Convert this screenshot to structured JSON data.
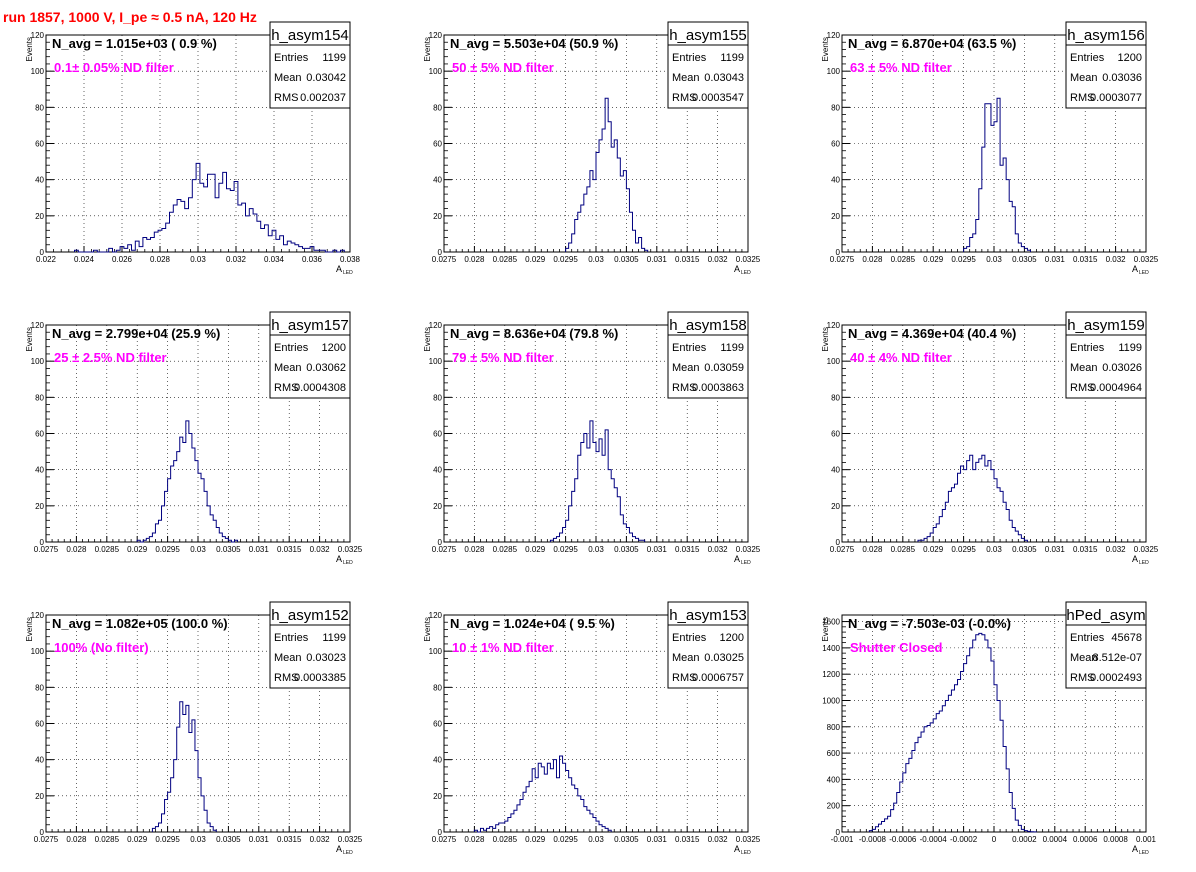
{
  "page_title": "run 1857,  1000 V, I_pe ≈ 0.5 nA, 120 Hz",
  "colors": {
    "histogram_line": "#000080",
    "filter_label": "#ff00ff",
    "page_title": "#ff0000",
    "grid": "#000000"
  },
  "common": {
    "y_axis_label": "Events",
    "x_axis_label_main": "A",
    "x_axis_label_sub": "LED",
    "stats_labels": [
      "Entries",
      "Mean",
      "RMS"
    ]
  },
  "chart_data": [
    {
      "type": "bar",
      "name": "h_asym154",
      "navg": "N_avg = 1.015e+03 ( 0.9 %)",
      "filter": "0.1± 0.05% ND filter",
      "stats": {
        "entries": "1199",
        "mean": "0.03042",
        "rms": "0.002037"
      },
      "xlim": [
        0.022,
        0.038
      ],
      "ylim": [
        0,
        120
      ],
      "xticks": [
        0.022,
        0.024,
        0.026,
        0.028,
        0.03,
        0.032,
        0.034,
        0.036,
        0.038
      ],
      "xtick_labels": [
        "0.022",
        "0.024",
        "0.026",
        "0.028",
        "0.03",
        "0.032",
        "0.034",
        "0.036",
        "0.038"
      ],
      "yticks": [
        0,
        20,
        40,
        60,
        80,
        100,
        120
      ],
      "ytick_labels": [
        "0",
        "20",
        "40",
        "60",
        "80",
        "100",
        "120"
      ],
      "bin_start": 0.0235,
      "bin_width": 0.0002,
      "counts": [
        1,
        0,
        0,
        0,
        0,
        1,
        0,
        0,
        0,
        2,
        0,
        1,
        3,
        2,
        4,
        1,
        6,
        3,
        8,
        7,
        8,
        11,
        12,
        13,
        16,
        22,
        26,
        29,
        28,
        24,
        30,
        40,
        49,
        38,
        36,
        43,
        43,
        30,
        38,
        44,
        35,
        34,
        39,
        26,
        27,
        20,
        24,
        21,
        17,
        13,
        15,
        9,
        12,
        7,
        9,
        4,
        6,
        5,
        4,
        3,
        2,
        2,
        3,
        1,
        1,
        1,
        0,
        0,
        1,
        0,
        1
      ]
    },
    {
      "type": "bar",
      "name": "h_asym155",
      "navg": "N_avg = 5.503e+04 (50.9 %)",
      "filter": "50 ± 5% ND filter",
      "stats": {
        "entries": "1199",
        "mean": "0.03043",
        "rms": "0.0003547"
      },
      "xlim": [
        0.0275,
        0.0325
      ],
      "ylim": [
        0,
        120
      ],
      "xticks": [
        0.0275,
        0.028,
        0.0285,
        0.029,
        0.0295,
        0.03,
        0.0305,
        0.031,
        0.0315,
        0.032,
        0.0325
      ],
      "xtick_labels": [
        "0.0275",
        "0.028",
        "0.0285",
        "0.029",
        "0.0295",
        "0.03",
        "0.0305",
        "0.031",
        "0.0315",
        "0.032",
        "0.0325"
      ],
      "yticks": [
        0,
        20,
        40,
        60,
        80,
        100,
        120
      ],
      "ytick_labels": [
        "0",
        "20",
        "40",
        "60",
        "80",
        "100",
        "120"
      ],
      "bin_start": 0.0295,
      "bin_width": 5e-05,
      "counts": [
        2,
        5,
        10,
        18,
        22,
        26,
        32,
        36,
        45,
        40,
        55,
        62,
        68,
        85,
        72,
        58,
        62,
        52,
        42,
        45,
        35,
        22,
        12,
        5,
        8,
        2,
        1
      ]
    },
    {
      "type": "bar",
      "name": "h_asym156",
      "navg": "N_avg = 6.870e+04 (63.5 %)",
      "filter": "63 ± 5% ND filter",
      "stats": {
        "entries": "1200",
        "mean": "0.03036",
        "rms": "0.0003077"
      },
      "xlim": [
        0.0275,
        0.0325
      ],
      "ylim": [
        0,
        120
      ],
      "xticks": [
        0.0275,
        0.028,
        0.0285,
        0.029,
        0.0295,
        0.03,
        0.0305,
        0.031,
        0.0315,
        0.032,
        0.0325
      ],
      "xtick_labels": [
        "0.0275",
        "0.028",
        "0.0285",
        "0.029",
        "0.0295",
        "0.03",
        "0.0305",
        "0.031",
        "0.0315",
        "0.032",
        "0.0325"
      ],
      "yticks": [
        0,
        20,
        40,
        60,
        80,
        100,
        120
      ],
      "ytick_labels": [
        "0",
        "20",
        "40",
        "60",
        "80",
        "100",
        "120"
      ],
      "bin_start": 0.0295,
      "bin_width": 5e-05,
      "counts": [
        2,
        3,
        8,
        10,
        18,
        35,
        58,
        82,
        82,
        70,
        72,
        85,
        48,
        52,
        40,
        28,
        25,
        10,
        5,
        3,
        2,
        1
      ]
    },
    {
      "type": "bar",
      "name": "h_asym157",
      "navg": "N_avg = 2.799e+04 (25.9 %)",
      "filter": "25 ± 2.5% ND filter",
      "stats": {
        "entries": "1200",
        "mean": "0.03062",
        "rms": "0.0004308"
      },
      "xlim": [
        0.0275,
        0.0325
      ],
      "ylim": [
        0,
        120
      ],
      "xticks": [
        0.0275,
        0.028,
        0.0285,
        0.029,
        0.0295,
        0.03,
        0.0305,
        0.031,
        0.0315,
        0.032,
        0.0325
      ],
      "xtick_labels": [
        "0.0275",
        "0.028",
        "0.0285",
        "0.029",
        "0.0295",
        "0.03",
        "0.0305",
        "0.031",
        "0.0315",
        "0.032",
        "0.0325"
      ],
      "yticks": [
        0,
        20,
        40,
        60,
        80,
        100,
        120
      ],
      "ytick_labels": [
        "0",
        "20",
        "40",
        "60",
        "80",
        "100",
        "120"
      ],
      "bin_start": 0.029,
      "bin_width": 5e-05,
      "counts": [
        1,
        0,
        1,
        2,
        3,
        5,
        10,
        12,
        20,
        28,
        35,
        42,
        45,
        50,
        58,
        55,
        67,
        60,
        52,
        45,
        38,
        35,
        28,
        20,
        15,
        12,
        8,
        5,
        3,
        2,
        1,
        0,
        1
      ]
    },
    {
      "type": "bar",
      "name": "h_asym158",
      "navg": "N_avg = 8.636e+04 (79.8 %)",
      "filter": "79 ± 5% ND filter",
      "stats": {
        "entries": "1199",
        "mean": "0.03059",
        "rms": "0.0003863"
      },
      "xlim": [
        0.0275,
        0.0325
      ],
      "ylim": [
        0,
        120
      ],
      "xticks": [
        0.0275,
        0.028,
        0.0285,
        0.029,
        0.0295,
        0.03,
        0.0305,
        0.031,
        0.0315,
        0.032,
        0.0325
      ],
      "xtick_labels": [
        "0.0275",
        "0.028",
        "0.0285",
        "0.029",
        "0.0295",
        "0.03",
        "0.0305",
        "0.031",
        "0.0315",
        "0.032",
        "0.0325"
      ],
      "yticks": [
        0,
        20,
        40,
        60,
        80,
        100,
        120
      ],
      "ytick_labels": [
        "0",
        "20",
        "40",
        "60",
        "80",
        "100",
        "120"
      ],
      "bin_start": 0.02925,
      "bin_width": 5e-05,
      "counts": [
        1,
        2,
        3,
        5,
        8,
        12,
        20,
        28,
        35,
        48,
        55,
        60,
        52,
        67,
        55,
        50,
        57,
        48,
        62,
        40,
        35,
        30,
        25,
        15,
        10,
        8,
        5,
        3,
        2,
        1,
        1
      ]
    },
    {
      "type": "bar",
      "name": "h_asym159",
      "navg": "N_avg = 4.369e+04 (40.4 %)",
      "filter": "40 ± 4% ND filter",
      "stats": {
        "entries": "1199",
        "mean": "0.03026",
        "rms": "0.0004964"
      },
      "xlim": [
        0.0275,
        0.0325
      ],
      "ylim": [
        0,
        120
      ],
      "xticks": [
        0.0275,
        0.028,
        0.0285,
        0.029,
        0.0295,
        0.03,
        0.0305,
        0.031,
        0.0315,
        0.032,
        0.0325
      ],
      "xtick_labels": [
        "0.0275",
        "0.028",
        "0.0285",
        "0.029",
        "0.0295",
        "0.03",
        "0.0305",
        "0.031",
        "0.0315",
        "0.032",
        "0.0325"
      ],
      "yticks": [
        0,
        20,
        40,
        60,
        80,
        100,
        120
      ],
      "ytick_labels": [
        "0",
        "20",
        "40",
        "60",
        "80",
        "100",
        "120"
      ],
      "bin_start": 0.02875,
      "bin_width": 5e-05,
      "counts": [
        1,
        1,
        2,
        3,
        5,
        8,
        10,
        14,
        18,
        22,
        28,
        30,
        32,
        38,
        42,
        40,
        45,
        48,
        40,
        44,
        46,
        48,
        42,
        45,
        40,
        35,
        30,
        28,
        22,
        18,
        12,
        8,
        6,
        4,
        2,
        1
      ]
    },
    {
      "type": "bar",
      "name": "h_asym152",
      "navg": "N_avg = 1.082e+05 (100.0 %)",
      "filter": "100% (No filter)",
      "stats": {
        "entries": "1199",
        "mean": "0.03023",
        "rms": "0.0003385"
      },
      "xlim": [
        0.0275,
        0.0325
      ],
      "ylim": [
        0,
        120
      ],
      "xticks": [
        0.0275,
        0.028,
        0.0285,
        0.029,
        0.0295,
        0.03,
        0.0305,
        0.031,
        0.0315,
        0.032,
        0.0325
      ],
      "xtick_labels": [
        "0.0275",
        "0.028",
        "0.0285",
        "0.029",
        "0.0295",
        "0.03",
        "0.0305",
        "0.031",
        "0.0315",
        "0.032",
        "0.0325"
      ],
      "yticks": [
        0,
        20,
        40,
        60,
        80,
        100,
        120
      ],
      "ytick_labels": [
        "0",
        "20",
        "40",
        "60",
        "80",
        "100",
        "120"
      ],
      "bin_start": 0.02925,
      "bin_width": 5e-05,
      "counts": [
        2,
        3,
        5,
        10,
        18,
        22,
        30,
        40,
        58,
        72,
        65,
        70,
        55,
        62,
        45,
        30,
        20,
        12,
        5,
        3,
        1
      ]
    },
    {
      "type": "bar",
      "name": "h_asym153",
      "navg": "N_avg = 1.024e+04 ( 9.5 %)",
      "filter": "10 ± 1% ND filter",
      "stats": {
        "entries": "1200",
        "mean": "0.03025",
        "rms": "0.0006757"
      },
      "xlim": [
        0.0275,
        0.0325
      ],
      "ylim": [
        0,
        120
      ],
      "xticks": [
        0.0275,
        0.028,
        0.0285,
        0.029,
        0.0295,
        0.03,
        0.0305,
        0.031,
        0.0315,
        0.032,
        0.0325
      ],
      "xtick_labels": [
        "0.0275",
        "0.028",
        "0.0285",
        "0.029",
        "0.0295",
        "0.03",
        "0.0305",
        "0.031",
        "0.0315",
        "0.032",
        "0.0325"
      ],
      "yticks": [
        0,
        20,
        40,
        60,
        80,
        100,
        120
      ],
      "ytick_labels": [
        "0",
        "20",
        "40",
        "60",
        "80",
        "100",
        "120"
      ],
      "bin_start": 0.028,
      "bin_width": 5e-05,
      "counts": [
        1,
        0,
        2,
        1,
        2,
        3,
        2,
        4,
        5,
        5,
        6,
        8,
        10,
        12,
        15,
        18,
        22,
        25,
        28,
        35,
        30,
        38,
        36,
        32,
        38,
        35,
        40,
        30,
        42,
        38,
        34,
        30,
        26,
        24,
        20,
        18,
        14,
        12,
        10,
        8,
        6,
        4,
        3,
        2,
        1
      ]
    },
    {
      "type": "bar",
      "name": "hPed_asym",
      "navg": "N_avg = -7.503e-03 (-0.0%)",
      "filter": "Shutter Closed",
      "stats": {
        "entries": "45678",
        "mean": "8.512e-07",
        "rms": "0.0002493"
      },
      "xlim": [
        -0.001,
        0.001
      ],
      "ylim": [
        0,
        1650
      ],
      "xticks": [
        -0.001,
        -0.0008,
        -0.0006,
        -0.0004,
        -0.0002,
        0,
        0.0002,
        0.0004,
        0.0006,
        0.0008,
        0.001
      ],
      "xtick_labels": [
        "-0.001",
        "-0.0008",
        "-0.0006",
        "-0.0004",
        "-0.0002",
        "0",
        "0.0002",
        "0.0004",
        "0.0006",
        "0.0008",
        "0.001"
      ],
      "yticks": [
        0,
        200,
        400,
        600,
        800,
        1000,
        1200,
        1400,
        1600
      ],
      "ytick_labels": [
        "0",
        "200",
        "400",
        "600",
        "800",
        "1000",
        "1200",
        "1400",
        "1600"
      ],
      "bin_start": -0.00082,
      "bin_width": 2e-05,
      "counts": [
        10,
        20,
        40,
        60,
        80,
        100,
        120,
        170,
        220,
        300,
        380,
        450,
        520,
        560,
        620,
        680,
        720,
        760,
        800,
        810,
        830,
        860,
        900,
        920,
        960,
        1000,
        1040,
        1080,
        1120,
        1160,
        1220,
        1280,
        1340,
        1400,
        1460,
        1500,
        1510,
        1500,
        1460,
        1400,
        1300,
        1120,
        1000,
        850,
        650,
        480,
        300,
        180,
        90,
        50,
        20,
        10,
        5,
        2,
        1
      ]
    }
  ]
}
